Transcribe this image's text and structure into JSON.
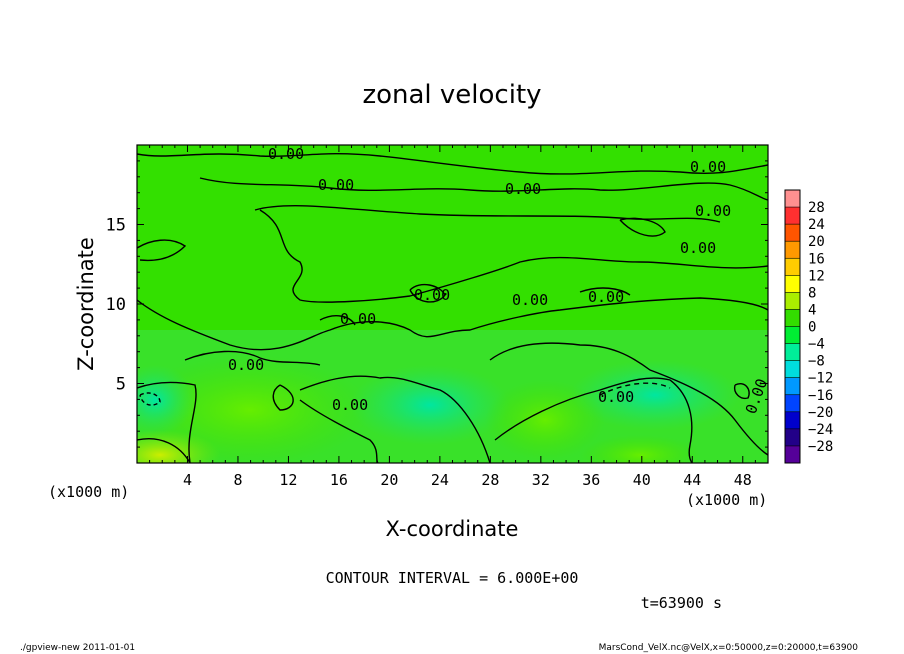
{
  "chart_data": {
    "type": "heatmap",
    "title": "zonal velocity",
    "xlabel": "X-coordinate",
    "ylabel": "Z-coordinate",
    "x_units": "(x1000 m)",
    "y_units": "(x1000 m)",
    "xlim": [
      0,
      50
    ],
    "ylim": [
      0,
      20
    ],
    "x_ticks": [
      "4",
      "8",
      "12",
      "16",
      "20",
      "24",
      "28",
      "32",
      "36",
      "40",
      "44",
      "48"
    ],
    "y_ticks": [
      "5",
      "10",
      "15"
    ],
    "colorbar": {
      "labels": [
        "28",
        "24",
        "20",
        "16",
        "12",
        "8",
        "4",
        "0",
        "−4",
        "−8",
        "−12",
        "−16",
        "−20",
        "−24",
        "−28"
      ],
      "colors": [
        "#ff9090",
        "#ff3030",
        "#ff5500",
        "#ff9900",
        "#ffcc00",
        "#ffff00",
        "#aaee00",
        "#33dd00",
        "#00ee33",
        "#00ee99",
        "#00dddd",
        "#0099ff",
        "#0044ff",
        "#0000cc",
        "#220088",
        "#550099"
      ]
    },
    "contour_label": "0.00",
    "contour_interval": "CONTOUR INTERVAL = 6.000E+00",
    "time": "t=63900 s",
    "grid": false
  },
  "footer": {
    "left": "./gpview-new  2011-01-01",
    "right": "MarsCond_VelX.nc@VelX,x=0:50000,z=0:20000,t=63900"
  }
}
